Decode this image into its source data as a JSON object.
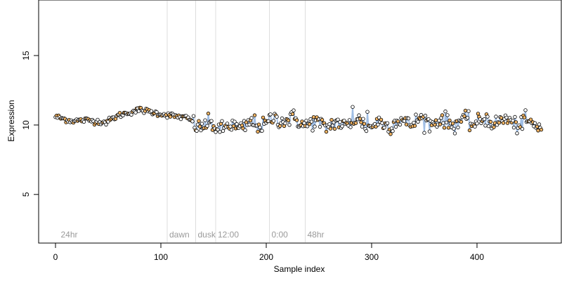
{
  "chart_data": {
    "type": "scatter",
    "xlabel": "Sample index",
    "ylabel": "Expression",
    "xlim": [
      -16,
      480
    ],
    "ylim": [
      1.5,
      19.0
    ],
    "x_ticks": [
      0,
      100,
      200,
      300,
      400
    ],
    "y_ticks": [
      5,
      10,
      15
    ],
    "grid": false,
    "annotations": [
      {
        "x": 3,
        "label": "24hr",
        "line": false
      },
      {
        "x": 106,
        "label": "dawn",
        "line": true
      },
      {
        "x": 133,
        "label": "dusk",
        "line": true
      },
      {
        "x": 152,
        "label": "12:00",
        "line": true
      },
      {
        "x": 203,
        "label": "0:00",
        "line": true
      },
      {
        "x": 237,
        "label": "48hr",
        "line": true
      }
    ],
    "colors": {
      "open_point": "#ffffff",
      "orange_point": "#f2b463",
      "blue_trace": "#8fb3e0",
      "annotation_line": "#dddddd",
      "annotation_text": "#9a9a9a"
    },
    "series": [
      {
        "name": "",
        "smooth_anchors": [
          [
            0,
            10.6
          ],
          [
            15,
            10.3
          ],
          [
            30,
            10.35
          ],
          [
            48,
            10.2
          ],
          [
            60,
            10.7
          ],
          [
            80,
            11.1
          ],
          [
            100,
            10.8
          ],
          [
            125,
            10.5
          ],
          [
            135,
            10.0
          ],
          [
            150,
            9.9
          ],
          [
            165,
            9.8
          ],
          [
            200,
            10.15
          ],
          [
            215,
            10.5
          ],
          [
            240,
            10.1
          ],
          [
            270,
            10.0
          ],
          [
            283,
            10.3
          ],
          [
            300,
            10.0
          ],
          [
            320,
            10.15
          ],
          [
            350,
            10.3
          ],
          [
            380,
            10.2
          ],
          [
            420,
            10.3
          ],
          [
            460,
            10.0
          ]
        ],
        "n_points": 462,
        "noise_sd": 0.28
      }
    ]
  }
}
